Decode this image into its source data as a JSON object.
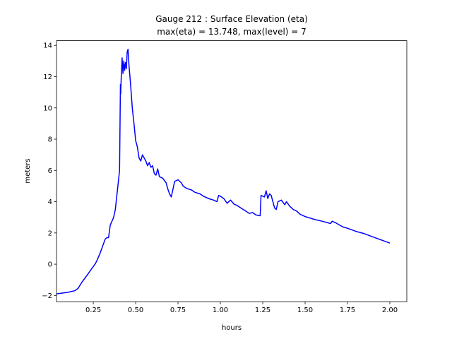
{
  "chart_data": {
    "type": "line",
    "title": "Gauge 212 : Surface Elevation (eta)",
    "subtitle": "max(eta) =  13.748,    max(level) = 7",
    "xlabel": "hours",
    "ylabel": "meters",
    "xlim": [
      0.033,
      2.1
    ],
    "ylim": [
      -2.4,
      14.3
    ],
    "xticks": [
      0.25,
      0.5,
      0.75,
      1.0,
      1.25,
      1.5,
      1.75,
      2.0
    ],
    "xtick_labels": [
      "0.25",
      "0.50",
      "0.75",
      "1.00",
      "1.25",
      "1.50",
      "1.75",
      "2.00"
    ],
    "yticks": [
      -2,
      0,
      2,
      4,
      6,
      8,
      10,
      12,
      14
    ],
    "ytick_labels": [
      "−2",
      "0",
      "2",
      "4",
      "6",
      "8",
      "10",
      "12",
      "14"
    ],
    "grid": false,
    "series": [
      {
        "name": "eta",
        "color": "#0000ff",
        "x": [
          0.033,
          0.1,
          0.14,
          0.16,
          0.18,
          0.2,
          0.22,
          0.24,
          0.26,
          0.27,
          0.29,
          0.31,
          0.32,
          0.33,
          0.34,
          0.35,
          0.37,
          0.38,
          0.39,
          0.4,
          0.405,
          0.41,
          0.412,
          0.415,
          0.42,
          0.425,
          0.43,
          0.435,
          0.44,
          0.445,
          0.45,
          0.455,
          0.46,
          0.47,
          0.48,
          0.49,
          0.5,
          0.51,
          0.52,
          0.53,
          0.54,
          0.55,
          0.56,
          0.57,
          0.58,
          0.59,
          0.6,
          0.61,
          0.62,
          0.63,
          0.64,
          0.66,
          0.68,
          0.69,
          0.7,
          0.71,
          0.72,
          0.73,
          0.75,
          0.77,
          0.78,
          0.8,
          0.83,
          0.85,
          0.88,
          0.9,
          0.93,
          0.96,
          0.98,
          0.99,
          1.0,
          1.02,
          1.04,
          1.06,
          1.08,
          1.1,
          1.12,
          1.15,
          1.17,
          1.19,
          1.21,
          1.235,
          1.24,
          1.26,
          1.27,
          1.28,
          1.29,
          1.3,
          1.31,
          1.32,
          1.33,
          1.34,
          1.36,
          1.38,
          1.39,
          1.41,
          1.43,
          1.45,
          1.47,
          1.5,
          1.53,
          1.56,
          1.6,
          1.65,
          1.66,
          1.68,
          1.72,
          1.75,
          1.8,
          1.85,
          1.9,
          1.95,
          2.0
        ],
        "y": [
          -1.9,
          -1.8,
          -1.7,
          -1.55,
          -1.2,
          -0.9,
          -0.6,
          -0.3,
          0.0,
          0.2,
          0.7,
          1.3,
          1.6,
          1.7,
          1.7,
          2.5,
          3.0,
          3.5,
          4.5,
          5.5,
          6.0,
          11.5,
          10.9,
          12.0,
          13.2,
          12.2,
          13.0,
          12.4,
          12.9,
          12.5,
          13.6,
          13.75,
          12.8,
          11.5,
          10.0,
          9.0,
          7.9,
          7.5,
          6.8,
          6.6,
          7.0,
          6.8,
          6.6,
          6.3,
          6.5,
          6.2,
          6.3,
          5.8,
          5.7,
          6.1,
          5.6,
          5.5,
          5.2,
          4.8,
          4.5,
          4.3,
          4.8,
          5.3,
          5.4,
          5.2,
          5.0,
          4.85,
          4.75,
          4.6,
          4.5,
          4.35,
          4.2,
          4.1,
          4.0,
          4.4,
          4.35,
          4.2,
          3.9,
          4.1,
          3.85,
          3.75,
          3.6,
          3.4,
          3.25,
          3.3,
          3.15,
          3.1,
          4.4,
          4.3,
          4.7,
          4.2,
          4.5,
          4.4,
          4.0,
          3.6,
          3.5,
          4.0,
          4.1,
          3.8,
          4.0,
          3.7,
          3.5,
          3.4,
          3.2,
          3.05,
          2.95,
          2.85,
          2.75,
          2.6,
          2.75,
          2.65,
          2.4,
          2.3,
          2.1,
          1.95,
          1.75,
          1.55,
          1.35
        ]
      }
    ]
  }
}
